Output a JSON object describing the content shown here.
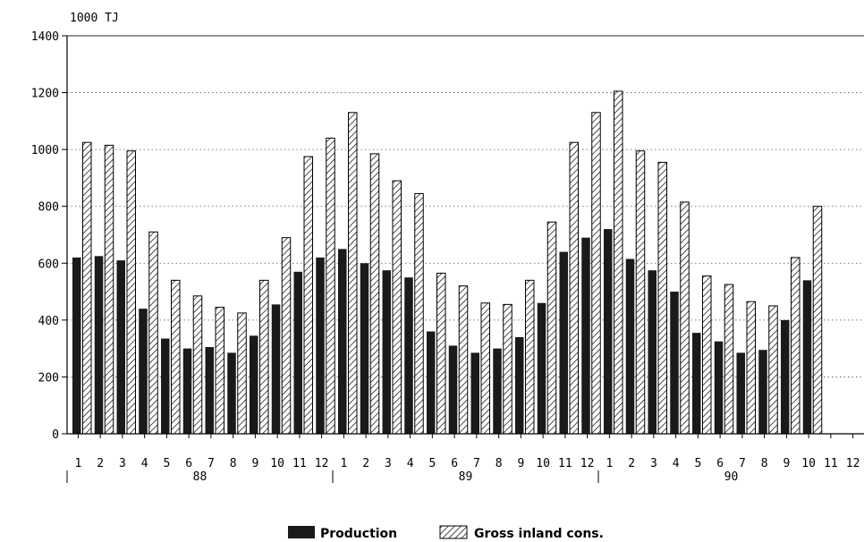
{
  "chart_data": {
    "type": "bar",
    "unit_label": "1000 TJ",
    "ylim": [
      0,
      1400
    ],
    "yticks": [
      0,
      200,
      400,
      600,
      800,
      1000,
      1200,
      1400
    ],
    "grid": true,
    "legend_position": "bottom",
    "months": [
      "1",
      "2",
      "3",
      "4",
      "5",
      "6",
      "7",
      "8",
      "9",
      "10",
      "11",
      "12",
      "1",
      "2",
      "3",
      "4",
      "5",
      "6",
      "7",
      "8",
      "9",
      "10",
      "11",
      "12",
      "1",
      "2",
      "3",
      "4",
      "5",
      "6",
      "7",
      "8",
      "9",
      "10",
      "11",
      "12"
    ],
    "years": [
      "88",
      "89",
      "90"
    ],
    "series": [
      {
        "name": "Production",
        "color": "#1a1a1a",
        "pattern": "solid",
        "values": [
          620,
          625,
          610,
          440,
          335,
          300,
          305,
          285,
          345,
          455,
          570,
          620,
          650,
          600,
          575,
          550,
          360,
          310,
          285,
          300,
          340,
          460,
          640,
          690,
          720,
          615,
          575,
          500,
          355,
          325,
          285,
          295,
          400,
          540,
          null,
          null
        ]
      },
      {
        "name": "Gross inland cons.",
        "color": "#000000",
        "pattern": "diagonal-hatch",
        "values": [
          1025,
          1015,
          995,
          710,
          540,
          485,
          445,
          425,
          540,
          690,
          975,
          1040,
          1130,
          985,
          890,
          845,
          565,
          520,
          460,
          455,
          540,
          745,
          1025,
          1130,
          1205,
          995,
          955,
          815,
          555,
          525,
          465,
          450,
          620,
          800,
          null,
          null
        ]
      }
    ]
  }
}
